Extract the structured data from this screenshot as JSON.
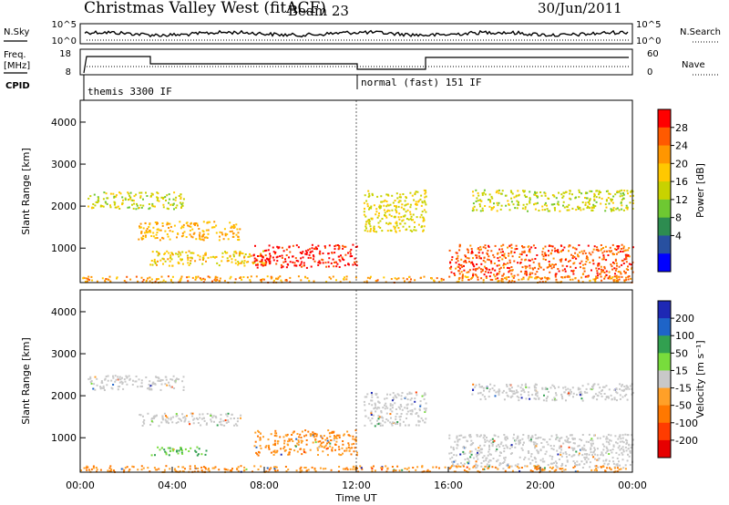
{
  "header": {
    "title": "Christmas Valley West (fitACF)",
    "beam": "Beam 23",
    "date": "30/Jun/2011"
  },
  "left_labels": {
    "nsky": "N.Sky",
    "freq_line1": "Freq.",
    "freq_line2": "[MHz]",
    "cpid": "CPID"
  },
  "right_labels": {
    "nsearch": "N.Search",
    "nave": "Nave"
  },
  "noise_panel": {
    "left_ticks": [
      "10^5",
      "10^0"
    ],
    "right_ticks": [
      "10^5",
      "10^0"
    ]
  },
  "freq_panel": {
    "left_ticks": [
      "18",
      "8"
    ],
    "right_ticks": [
      "60",
      "0"
    ]
  },
  "cpid_panel": {
    "segments": [
      {
        "label": "themis 3300 IF",
        "start_hour": 0,
        "end_hour": 12
      },
      {
        "label": "normal (fast) 151 IF",
        "start_hour": 12,
        "end_hour": 24
      }
    ]
  },
  "colorbars": {
    "power": {
      "label": "Power [dB]",
      "ticks": [
        "28",
        "24",
        "20",
        "16",
        "12",
        "8",
        "4"
      ],
      "colors": [
        "#ff0000",
        "#ff5a00",
        "#ff9600",
        "#ffc800",
        "#c8d200",
        "#6ec832",
        "#2d8c50",
        "#2850a0",
        "#0000ff"
      ]
    },
    "velocity": {
      "label": "Velocity [m s⁻¹]",
      "ticks": [
        "200",
        "100",
        "50",
        "15",
        "-15",
        "-50",
        "-100",
        "-200"
      ],
      "colors": [
        "#1e28b4",
        "#1e64c8",
        "#32a050",
        "#78dc3c",
        "#c8c8c8",
        "#ffa028",
        "#ff7800",
        "#ff3c00",
        "#e60000"
      ]
    }
  },
  "chart_data": [
    {
      "type": "heatmap",
      "title": "Power",
      "ylabel": "Slant Range [km]",
      "ylim": [
        180,
        4520
      ],
      "y_ticks": [
        "4000",
        "3000",
        "2000",
        "1000"
      ],
      "y_tick_values": [
        4000,
        3000,
        2000,
        1000
      ],
      "xlim": [
        0,
        24
      ],
      "color_scale": "Power [dB]",
      "echo_regions": [
        {
          "t0": 0.3,
          "t1": 4.5,
          "r0": 1950,
          "r1": 2350,
          "power_db": 12
        },
        {
          "t0": 2.5,
          "t1": 7.0,
          "r0": 1200,
          "r1": 1650,
          "power_db": 18
        },
        {
          "t0": 3.0,
          "t1": 8.0,
          "r0": 600,
          "r1": 950,
          "power_db": 16
        },
        {
          "t0": 7.5,
          "t1": 12.0,
          "r0": 550,
          "r1": 1100,
          "power_db": 28
        },
        {
          "t0": 12.3,
          "t1": 15.0,
          "r0": 1400,
          "r1": 2400,
          "power_db": 14
        },
        {
          "t0": 16.0,
          "t1": 24.0,
          "r0": 300,
          "r1": 1100,
          "power_db": 24
        },
        {
          "t0": 17.0,
          "t1": 24.0,
          "r0": 1900,
          "r1": 2400,
          "power_db": 12
        },
        {
          "t0": 0.0,
          "t1": 24.0,
          "r0": 200,
          "r1": 350,
          "power_db": 20
        }
      ]
    },
    {
      "type": "heatmap",
      "title": "Velocity",
      "ylabel": "Slant Range [km]",
      "ylim": [
        180,
        4520
      ],
      "y_ticks": [
        "4000",
        "3000",
        "2000",
        "1000"
      ],
      "y_tick_values": [
        4000,
        3000,
        2000,
        1000
      ],
      "xlim": [
        0,
        24
      ],
      "x_ticks": [
        "00:00",
        "04:00",
        "08:00",
        "12:00",
        "16:00",
        "20:00",
        "00:00"
      ],
      "x_tick_values": [
        0,
        4,
        8,
        12,
        16,
        20,
        24
      ],
      "xlabel": "Time UT",
      "color_scale": "Velocity [m s⁻¹]",
      "echo_regions": [
        {
          "t0": 0.3,
          "t1": 4.5,
          "r0": 2150,
          "r1": 2500,
          "velocity": 0
        },
        {
          "t0": 2.5,
          "t1": 7.0,
          "r0": 1300,
          "r1": 1600,
          "velocity": 0
        },
        {
          "t0": 3.0,
          "t1": 5.5,
          "r0": 600,
          "r1": 800,
          "velocity": 40
        },
        {
          "t0": 7.5,
          "t1": 12.0,
          "r0": 600,
          "r1": 1200,
          "velocity": -50
        },
        {
          "t0": 12.3,
          "t1": 15.0,
          "r0": 1300,
          "r1": 2100,
          "velocity": 0
        },
        {
          "t0": 16.0,
          "t1": 24.0,
          "r0": 300,
          "r1": 1100,
          "velocity": 0
        },
        {
          "t0": 17.0,
          "t1": 24.0,
          "r0": 1900,
          "r1": 2300,
          "velocity": 0
        },
        {
          "t0": 0.0,
          "t1": 24.0,
          "r0": 200,
          "r1": 350,
          "velocity": -50
        }
      ]
    }
  ]
}
